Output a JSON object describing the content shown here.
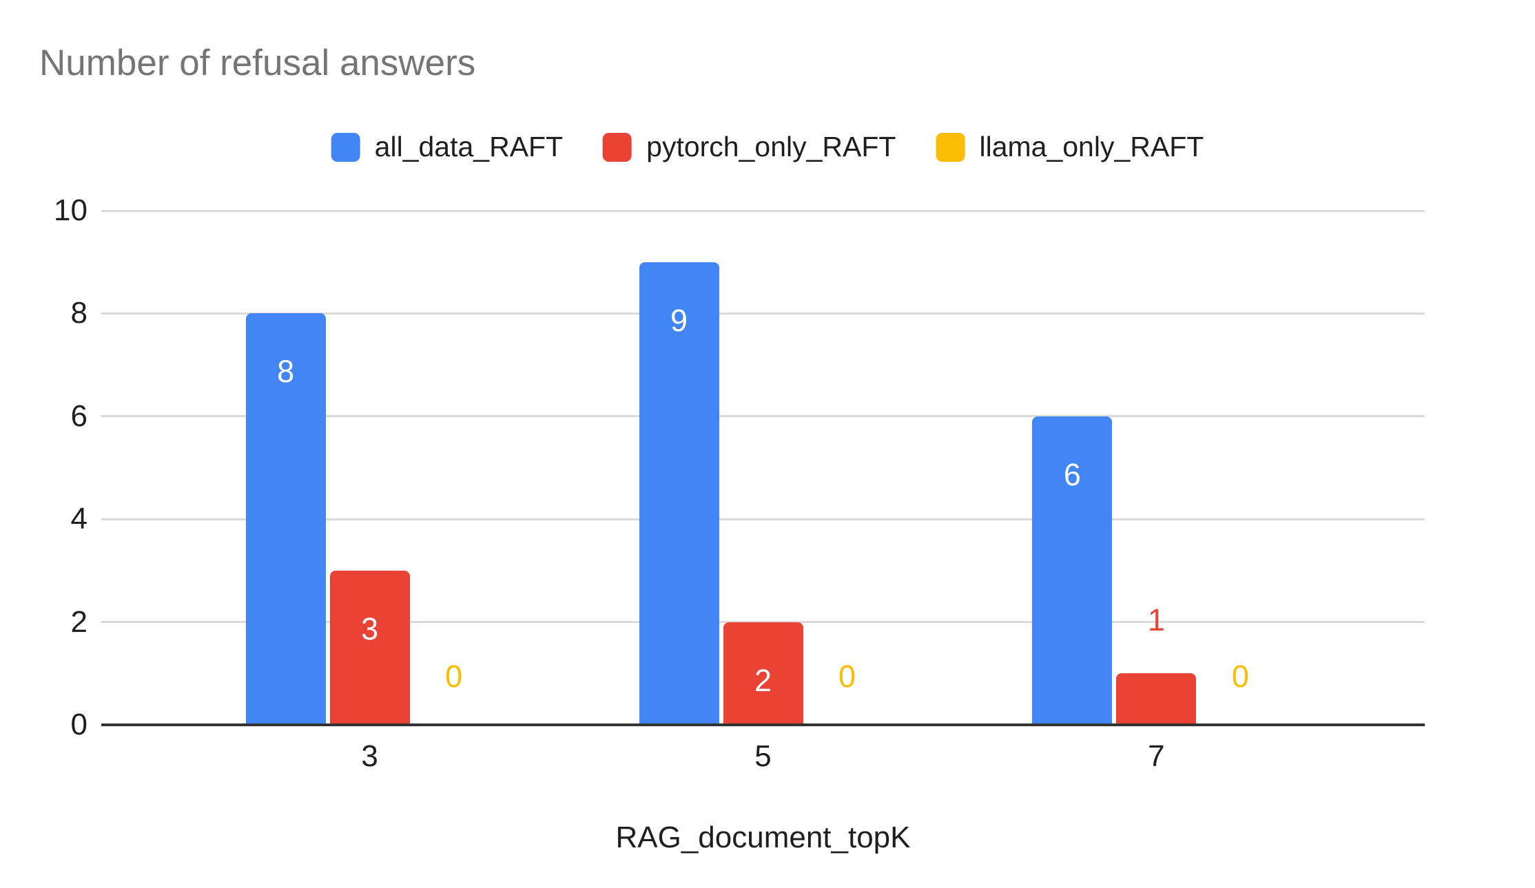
{
  "page": {
    "background": "#ffffff"
  },
  "chart_data": {
    "type": "bar",
    "title": "Number of refusal answers",
    "title_color": "#757575",
    "xlabel": "RAG_document_topK",
    "ylabel": "",
    "categories": [
      "3",
      "5",
      "7"
    ],
    "series": [
      {
        "name": "all_data_RAFT",
        "color": "#4285F4",
        "values": [
          8,
          9,
          6
        ]
      },
      {
        "name": "pytorch_only_RAFT",
        "color": "#EA4335",
        "values": [
          3,
          2,
          1
        ]
      },
      {
        "name": "llama_only_RAFT",
        "color": "#FBBC04",
        "values": [
          0,
          0,
          0
        ]
      }
    ],
    "y_ticks": [
      0,
      2,
      4,
      6,
      8,
      10
    ],
    "ylim": [
      0,
      10
    ],
    "grid": true,
    "legend_position": "top",
    "bar_value_labels": true,
    "label_inside_color": "#ffffff",
    "gridline_color": "#dadada",
    "baseline_color": "#333333",
    "axis_text_color": "#1f1f1f"
  }
}
